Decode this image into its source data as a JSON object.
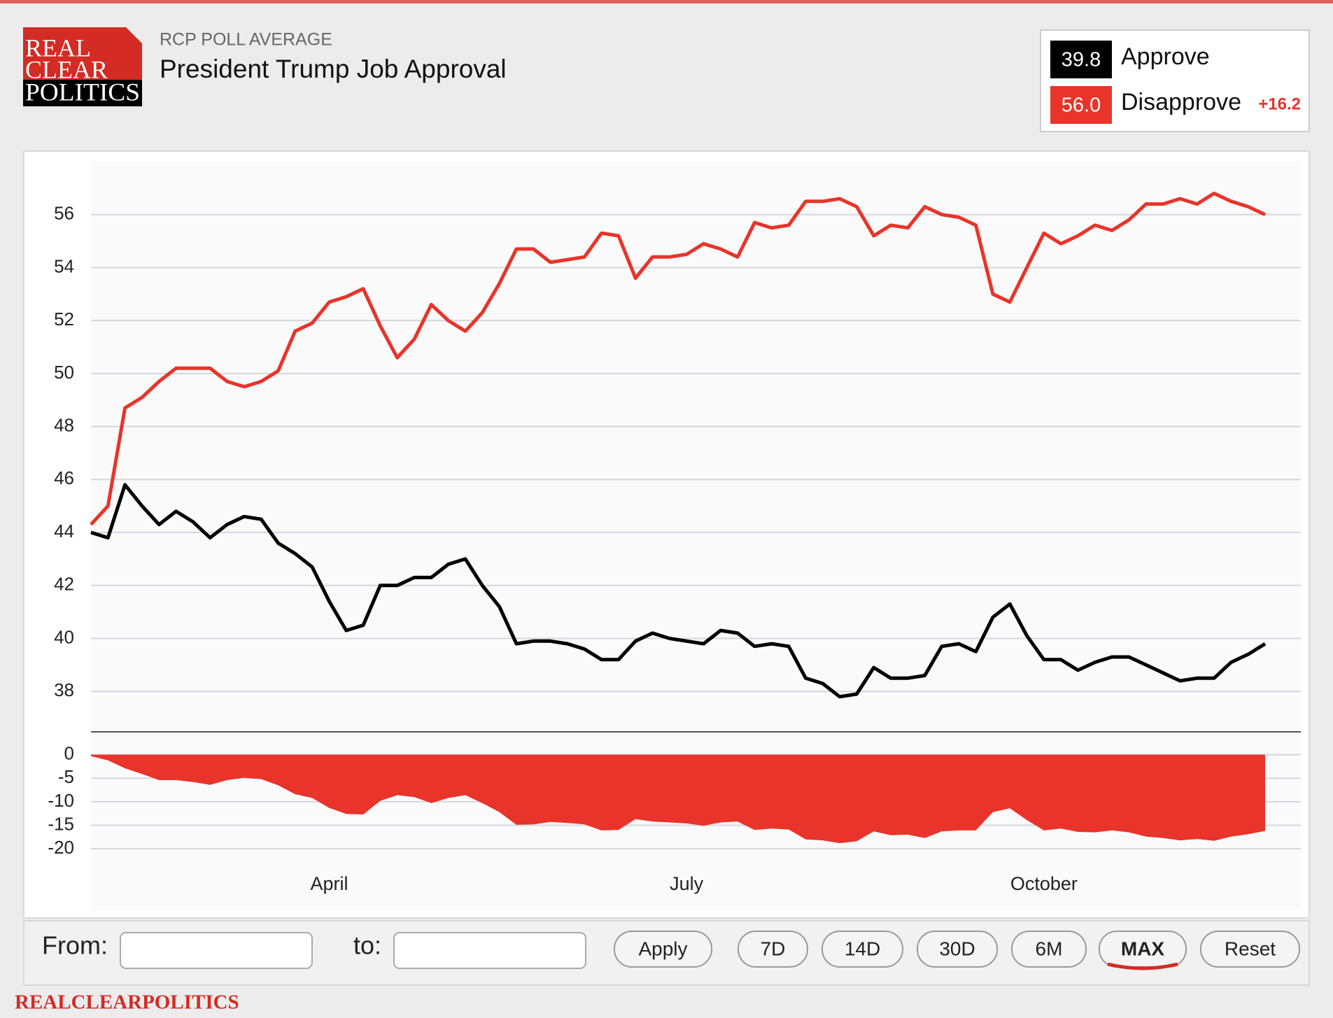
{
  "logo": [
    "REAL",
    "CLEAR",
    "POLITICS"
  ],
  "header": {
    "kicker": "RCP POLL AVERAGE",
    "title": "President Trump Job Approval"
  },
  "legend": {
    "items": [
      {
        "value": {
          "value": 39.8,
          "label": "39.8"
        },
        "label": "Approve",
        "color": "#000000"
      },
      {
        "value": {
          "value": 56,
          "label": "56.0"
        },
        "label": "Disapprove",
        "color": "#e8342a"
      }
    ],
    "spread": {
      "value": 16.2,
      "label": "+16.2"
    }
  },
  "chart_data": [
    {
      "type": "line",
      "categories": [
        null,
        null,
        null,
        null,
        null,
        null,
        null,
        null,
        null,
        null,
        null,
        null,
        null,
        null,
        "April",
        null,
        null,
        null,
        null,
        null,
        null,
        null,
        null,
        null,
        null,
        null,
        null,
        null,
        null,
        null,
        null,
        null,
        null,
        null,
        null,
        "July",
        null,
        null,
        null,
        null,
        null,
        null,
        null,
        null,
        null,
        null,
        null,
        null,
        null,
        null,
        null,
        null,
        null,
        null,
        null,
        null,
        "October",
        null,
        null,
        null,
        null,
        null,
        null,
        null,
        null,
        null,
        null,
        null,
        null,
        null
      ],
      "series": [
        {
          "name": "Disapprove",
          "color": "#e8342a",
          "values": [
            44.3,
            45.0,
            48.7,
            49.1,
            49.7,
            50.2,
            50.2,
            50.2,
            49.7,
            49.5,
            49.7,
            50.1,
            51.6,
            51.9,
            52.7,
            52.9,
            53.2,
            51.8,
            50.6,
            51.3,
            52.6,
            52.0,
            51.6,
            52.3,
            53.4,
            54.7,
            54.7,
            54.2,
            54.3,
            54.4,
            55.3,
            55.2,
            53.6,
            54.4,
            54.4,
            54.5,
            54.9,
            54.7,
            54.4,
            55.7,
            55.5,
            55.6,
            56.5,
            56.5,
            56.6,
            56.3,
            55.2,
            55.6,
            55.5,
            56.3,
            56.0,
            55.9,
            55.6,
            53.0,
            52.7,
            54.0,
            55.3,
            54.9,
            55.2,
            55.6,
            55.4,
            55.8,
            56.4,
            56.4,
            56.6,
            56.4,
            56.8,
            56.5,
            56.3,
            56.0
          ]
        },
        {
          "name": "Approve",
          "color": "#000000",
          "values": [
            44.0,
            43.8,
            45.8,
            45.0,
            44.3,
            44.8,
            44.4,
            43.8,
            44.3,
            44.6,
            44.5,
            43.6,
            43.2,
            42.7,
            41.4,
            40.3,
            40.5,
            42.0,
            42.0,
            42.3,
            42.3,
            42.8,
            43.0,
            42.0,
            41.2,
            39.8,
            39.9,
            39.9,
            39.8,
            39.6,
            39.2,
            39.2,
            39.9,
            40.2,
            40.0,
            39.9,
            39.8,
            40.3,
            40.2,
            39.7,
            39.8,
            39.7,
            38.5,
            38.3,
            37.8,
            37.9,
            38.9,
            38.5,
            38.5,
            38.6,
            39.7,
            39.8,
            39.5,
            40.8,
            41.3,
            40.1,
            39.2,
            39.2,
            38.8,
            39.1,
            39.3,
            39.3,
            39.0,
            38.7,
            38.4,
            38.5,
            38.5,
            39.1,
            39.4,
            39.8
          ]
        }
      ],
      "ylim": [
        36.5,
        58
      ],
      "yticks": [
        38,
        40,
        42,
        44,
        46,
        48,
        50,
        52,
        54,
        56
      ],
      "grid": true
    },
    {
      "type": "area",
      "color": "#e8342a",
      "values": [
        -0.3,
        -1.2,
        -2.9,
        -4.1,
        -5.4,
        -5.4,
        -5.8,
        -6.4,
        -5.4,
        -4.9,
        -5.2,
        -6.5,
        -8.4,
        -9.2,
        -11.3,
        -12.6,
        -12.7,
        -9.8,
        -8.6,
        -9.0,
        -10.3,
        -9.2,
        -8.6,
        -10.3,
        -12.2,
        -14.9,
        -14.8,
        -14.3,
        -14.5,
        -14.8,
        -16.1,
        -16.0,
        -13.7,
        -14.2,
        -14.4,
        -14.6,
        -15.1,
        -14.4,
        -14.2,
        -16.0,
        -15.7,
        -15.9,
        -18.0,
        -18.2,
        -18.8,
        -18.4,
        -16.3,
        -17.1,
        -17.0,
        -17.7,
        -16.3,
        -16.1,
        -16.1,
        -12.2,
        -11.4,
        -13.9,
        -16.1,
        -15.7,
        -16.4,
        -16.5,
        -16.1,
        -16.5,
        -17.4,
        -17.7,
        -18.2,
        -17.9,
        -18.3,
        -17.4,
        -16.9,
        -16.2
      ],
      "ylim": [
        -22.5,
        5
      ],
      "yticks": [
        -20,
        -15,
        -10,
        -5,
        0
      ],
      "grid": true
    }
  ],
  "controls": {
    "from": "From:",
    "to": "to:",
    "buttons": [
      "Apply",
      "7D",
      "14D",
      "30D",
      "6M",
      "MAX",
      "Reset"
    ],
    "active": 5
  },
  "footer": "REALCLEARPOLITICS"
}
